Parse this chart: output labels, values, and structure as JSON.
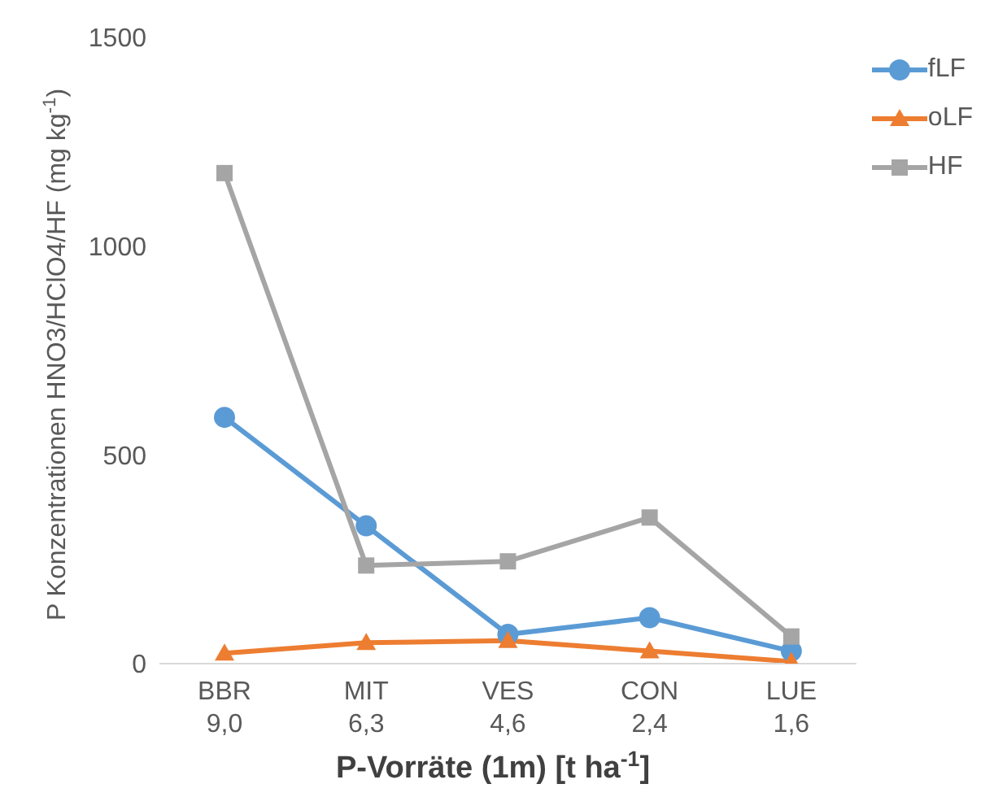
{
  "chart_data": {
    "type": "line",
    "xlabel": "P-Vorräte (1m) [t ha$^{-1}$]",
    "ylabel": "P Konzentrationen HNO3/HClO4/HF (mg kg$^{-1}$)",
    "categories": [
      "BBR\n9,0",
      "MIT\n6,3",
      "VES\n4,6",
      "CON\n2,4",
      "LUE\n1,6"
    ],
    "series": [
      {
        "name": "fLF",
        "color": "#5b9bd5",
        "marker": "circle",
        "values": [
          590,
          330,
          70,
          110,
          30
        ]
      },
      {
        "name": "oLF",
        "color": "#ed7d31",
        "marker": "triangle",
        "values": [
          25,
          50,
          55,
          30,
          5
        ]
      },
      {
        "name": "HF",
        "color": "#a5a5a5",
        "marker": "square",
        "values": [
          1175,
          235,
          245,
          350,
          65
        ]
      }
    ],
    "ylim": [
      0,
      1500
    ],
    "yticks": [
      0,
      500,
      1000,
      1500
    ],
    "legend": "top right"
  }
}
